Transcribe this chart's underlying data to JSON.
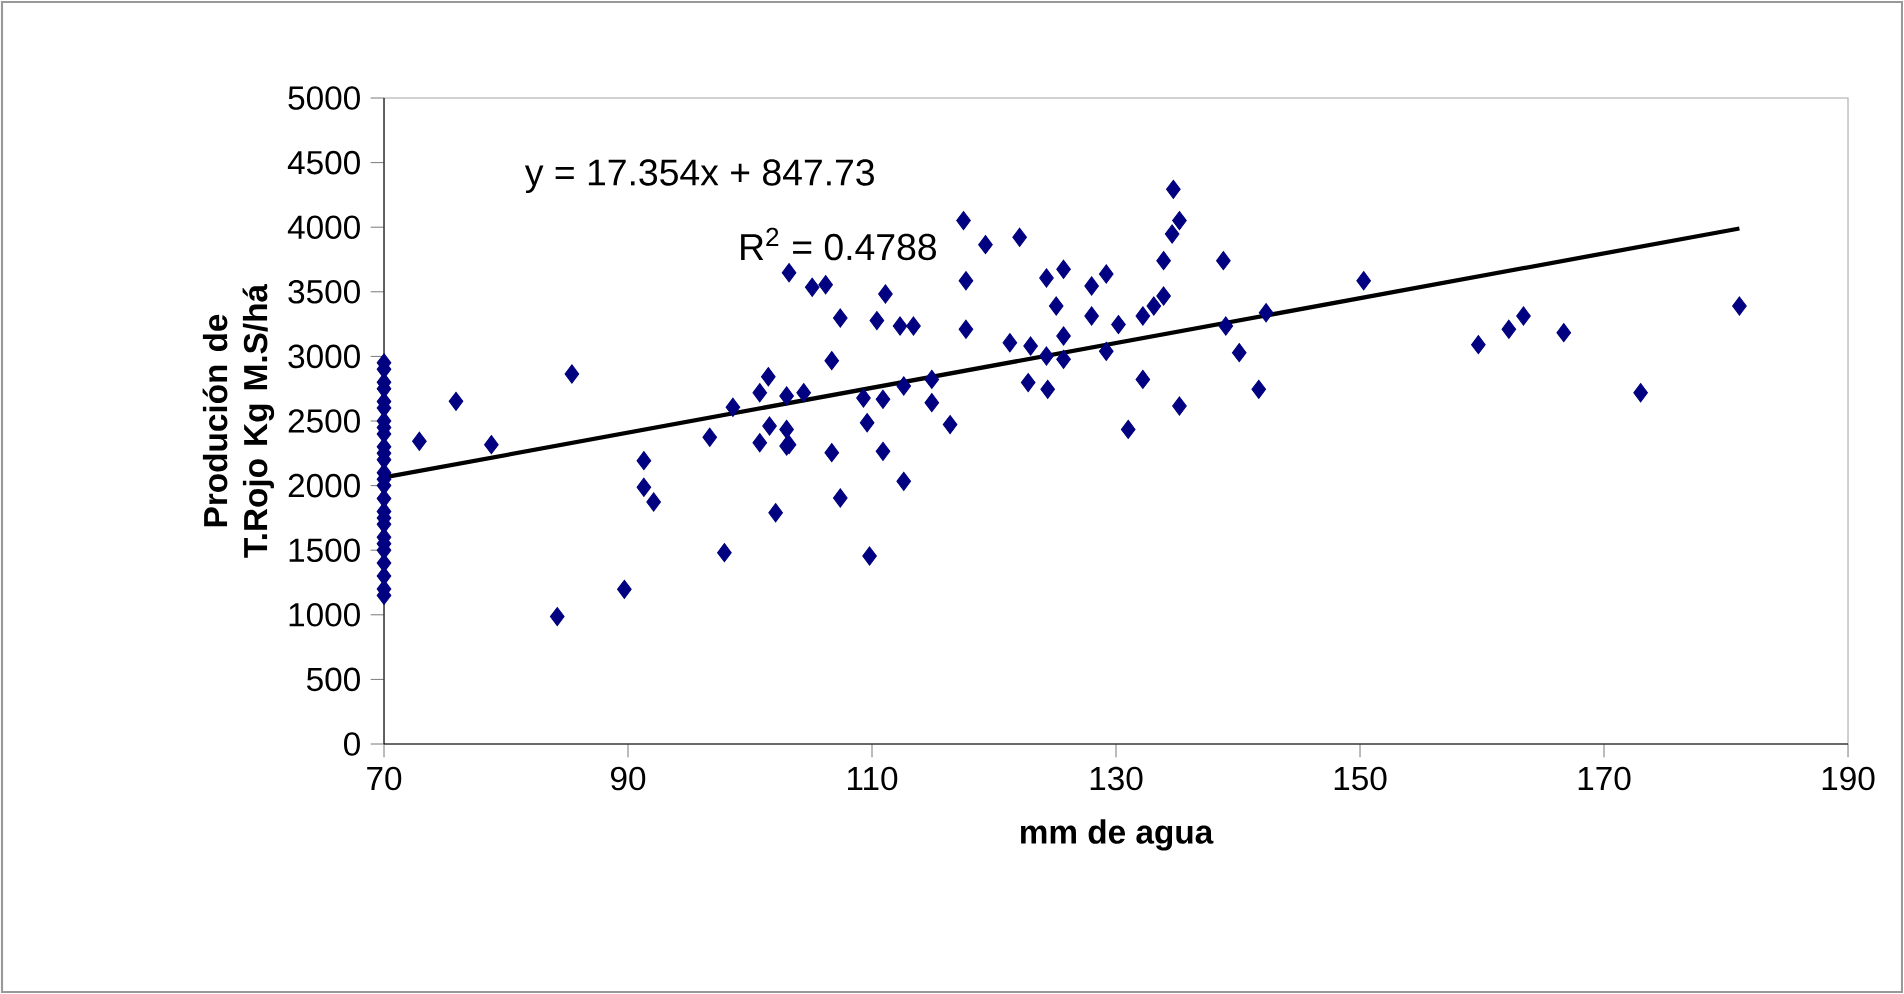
{
  "chart_data": {
    "type": "scatter",
    "xlabel": "mm de agua",
    "ylabel": "Produción de T.Rojo Kg M.S/há",
    "xlim": [
      70,
      190
    ],
    "ylim": [
      0,
      5000
    ],
    "xticks": [
      70,
      90,
      110,
      130,
      150,
      170,
      190
    ],
    "yticks": [
      0,
      500,
      1000,
      1500,
      2000,
      2500,
      3000,
      3500,
      4000,
      4500,
      5000
    ],
    "marker": "diamond",
    "grid": false,
    "annotations": [
      "y = 17.354x + 847.73",
      "R$^{2}$ = 0.4788"
    ],
    "series": [
      {
        "color": "#000080",
        "x": [
          70,
          70,
          70,
          70,
          70,
          70,
          70,
          70,
          70,
          70,
          70,
          70,
          70,
          70,
          70,
          70,
          70,
          70,
          70,
          70,
          70,
          70,
          70,
          70,
          70,
          70,
          72.9,
          75.9,
          78.8,
          85.4,
          84.2,
          89.7,
          91.3,
          91.3,
          92.1,
          96.7,
          97.9,
          98.6,
          100.8,
          101.5,
          100.8,
          101.6,
          102.1,
          103.2,
          103.2,
          134.7,
          135.2,
          134.6,
          138.8,
          133.9,
          117.5,
          119.3,
          122.1,
          105.1,
          106.2,
          111.1,
          117.7,
          107.4,
          110.4,
          112.3,
          113.4,
          117.7,
          124.3,
          125.7,
          128.0,
          129.2,
          125.1,
          128.0,
          130.2,
          132.2,
          133.1,
          133.9,
          139.0,
          142.3,
          140.1,
          141.7,
          132.2,
          135.2,
          131.0,
          129.2,
          125.7,
          124.3,
          121.3,
          123.0,
          122.8,
          124.4,
          125.7,
          106.7,
          104.4,
          103.0,
          103.0,
          106.7,
          107.4,
          109.6,
          109.3,
          110.9,
          110.9,
          112.6,
          109.8,
          112.6,
          114.9,
          114.9,
          116.4,
          103.0,
          150.3,
          159.7,
          162.2,
          163.4,
          166.7,
          173.0,
          181.1
        ],
        "values": [
          2950,
          2900,
          2800,
          2750,
          2650,
          2600,
          2500,
          2450,
          2400,
          2300,
          2250,
          2200,
          2100,
          2050,
          2000,
          1900,
          1800,
          1750,
          1700,
          1600,
          1550,
          1500,
          1400,
          1300,
          1200,
          1150,
          2343,
          2652,
          2317,
          2864,
          986,
          1197,
          2193,
          1987,
          1873,
          2374,
          1481,
          2606,
          2719,
          2843,
          2332,
          2461,
          1790,
          3648,
          2317,
          4293,
          4051,
          3947,
          3741,
          3741,
          4051,
          3865,
          3922,
          3535,
          3555,
          3483,
          3586,
          3297,
          3277,
          3235,
          3235,
          3210,
          3607,
          3674,
          3545,
          3638,
          3390,
          3313,
          3246,
          3313,
          3390,
          3467,
          3235,
          3338,
          3029,
          2745,
          2822,
          2616,
          2435,
          3039,
          3158,
          3003,
          3106,
          3080,
          2797,
          2745,
          2977,
          2967,
          2719,
          2435,
          2307,
          2255,
          1904,
          2487,
          2678,
          2668,
          2265,
          2033,
          1455,
          2771,
          2642,
          2822,
          2472,
          2694,
          3586,
          3091,
          3210,
          3313,
          3184,
          2719,
          3390
        ]
      },
      {
        "type": "line",
        "color": "#000000",
        "marker": "none",
        "x": [
          70,
          181.1
        ],
        "values": [
          2063,
          3990
        ]
      }
    ]
  }
}
